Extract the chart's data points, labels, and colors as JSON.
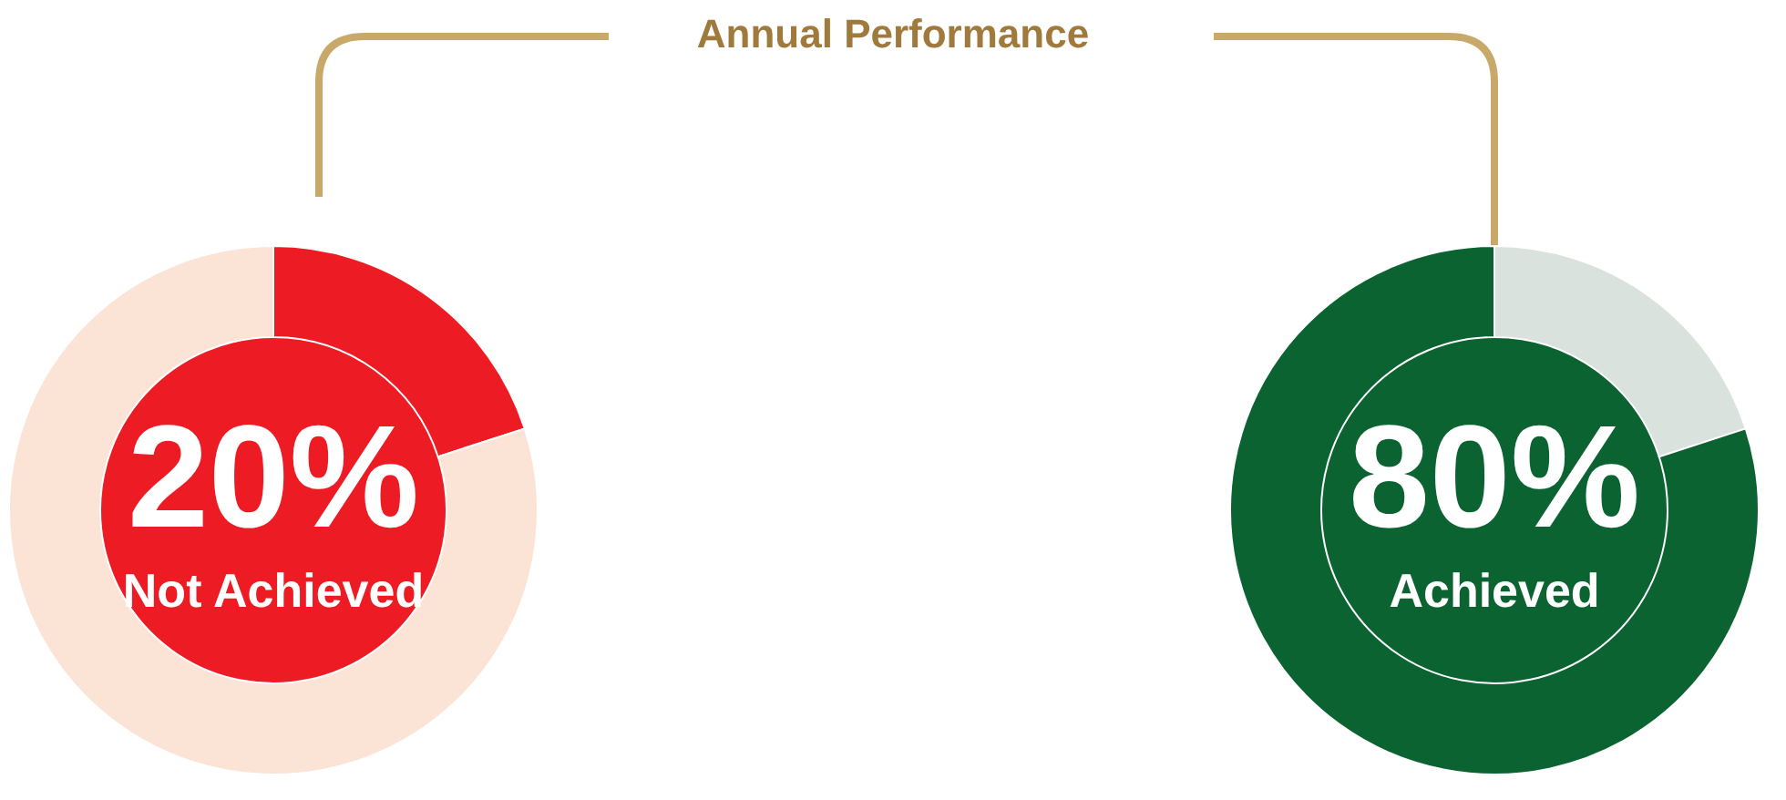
{
  "chart_data": [
    {
      "type": "donut",
      "title": "Annual Performance",
      "categories": [
        "Not Achieved",
        null
      ],
      "values": [
        20,
        80
      ],
      "colors": [
        "#ed1c24",
        "#fbe3d6"
      ],
      "value_labels": [
        "20%",
        null
      ]
    },
    {
      "type": "donut",
      "categories": [
        null,
        "Achieved"
      ],
      "values": [
        20,
        80
      ],
      "colors": [
        "#d9e2dc",
        "#0a6331"
      ],
      "value_labels": [
        null,
        "80%"
      ]
    }
  ]
}
